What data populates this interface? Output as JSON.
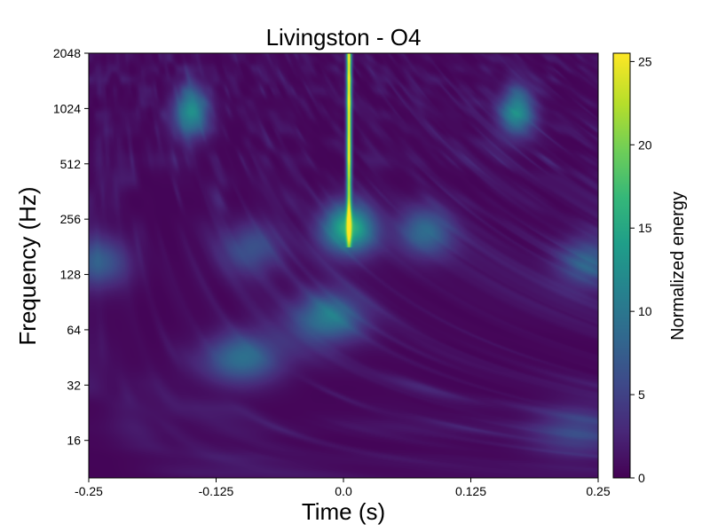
{
  "chart_data": {
    "type": "heatmap",
    "title": "Livingston - O4",
    "xlabel": "Time (s)",
    "ylabel": "Frequency (Hz)",
    "xlim": [
      -0.25,
      0.25
    ],
    "ylim": [
      10,
      2048
    ],
    "y_scale": "log2",
    "x_ticks": [
      -0.25,
      -0.125,
      0.0,
      0.125,
      0.25
    ],
    "x_tick_labels": [
      "-0.25",
      "-0.125",
      "0.0",
      "0.125",
      "0.25"
    ],
    "y_ticks": [
      16,
      32,
      64,
      128,
      256,
      512,
      1024,
      2048
    ],
    "y_tick_labels": [
      "16",
      "32",
      "64",
      "128",
      "256",
      "512",
      "1024",
      "2048"
    ],
    "colorbar": {
      "label": "Normalized energy",
      "range": [
        0,
        25.5
      ],
      "ticks": [
        0,
        5,
        10,
        15,
        20,
        25
      ],
      "tick_labels": [
        "0",
        "5",
        "10",
        "15",
        "20",
        "25"
      ],
      "colormap": "viridis"
    },
    "background_energy": 1.2,
    "features": [
      {
        "t": 0.005,
        "f_min": 180,
        "f_max": 2048,
        "peak_energy": 25,
        "kind": "chirp-track"
      },
      {
        "t": 0.005,
        "f": 230,
        "energy": 16,
        "kind": "blob"
      },
      {
        "t": -0.015,
        "f": 75,
        "energy": 10,
        "kind": "blob"
      },
      {
        "t": -0.1,
        "f": 45,
        "energy": 9,
        "kind": "blob"
      },
      {
        "t": -0.24,
        "f": 150,
        "energy": 7,
        "kind": "blob"
      },
      {
        "t": 0.24,
        "f": 150,
        "energy": 7,
        "kind": "blob"
      },
      {
        "t": 0.08,
        "f": 220,
        "energy": 8,
        "kind": "blob"
      },
      {
        "t": -0.09,
        "f": 180,
        "energy": 6,
        "kind": "blob"
      },
      {
        "t": 0.23,
        "f": 18,
        "energy": 5,
        "kind": "blob"
      },
      {
        "t": -0.15,
        "f": 1000,
        "energy": 12,
        "kind": "blob"
      },
      {
        "t": 0.17,
        "f": 1000,
        "energy": 11,
        "kind": "blob"
      }
    ]
  }
}
